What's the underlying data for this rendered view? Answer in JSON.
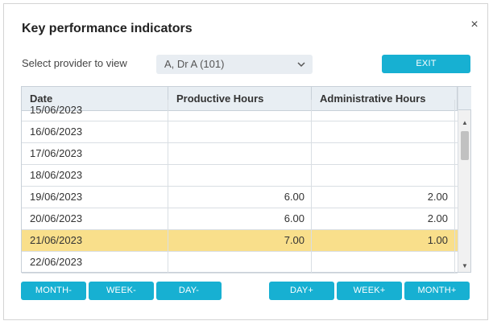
{
  "dialog": {
    "title": "Key performance indicators",
    "close_icon": "close-icon",
    "close_glyph": "×"
  },
  "provider": {
    "label": "Select provider to view",
    "selected": "A, Dr A (101)",
    "chevron_icon": "chevron-down-icon"
  },
  "exit_label": "EXIT",
  "table": {
    "columns": [
      "Date",
      "Productive Hours",
      "Administrative Hours"
    ],
    "rows": [
      {
        "date": "15/06/2023",
        "productive": "",
        "administrative": "",
        "selected": false
      },
      {
        "date": "16/06/2023",
        "productive": "",
        "administrative": "",
        "selected": false
      },
      {
        "date": "17/06/2023",
        "productive": "",
        "administrative": "",
        "selected": false
      },
      {
        "date": "18/06/2023",
        "productive": "",
        "administrative": "",
        "selected": false
      },
      {
        "date": "19/06/2023",
        "productive": "6.00",
        "administrative": "2.00",
        "selected": false
      },
      {
        "date": "20/06/2023",
        "productive": "6.00",
        "administrative": "2.00",
        "selected": false
      },
      {
        "date": "21/06/2023",
        "productive": "7.00",
        "administrative": "1.00",
        "selected": true
      },
      {
        "date": "22/06/2023",
        "productive": "",
        "administrative": "",
        "selected": false
      }
    ]
  },
  "nav": {
    "month_prev": "MONTH-",
    "week_prev": "WEEK-",
    "day_prev": "DAY-",
    "day_next": "DAY+",
    "week_next": "WEEK+",
    "month_next": "MONTH+"
  },
  "colors": {
    "accent": "#17b0d2",
    "selected_row": "#f9df8b",
    "header_bg": "#e8eef3"
  }
}
